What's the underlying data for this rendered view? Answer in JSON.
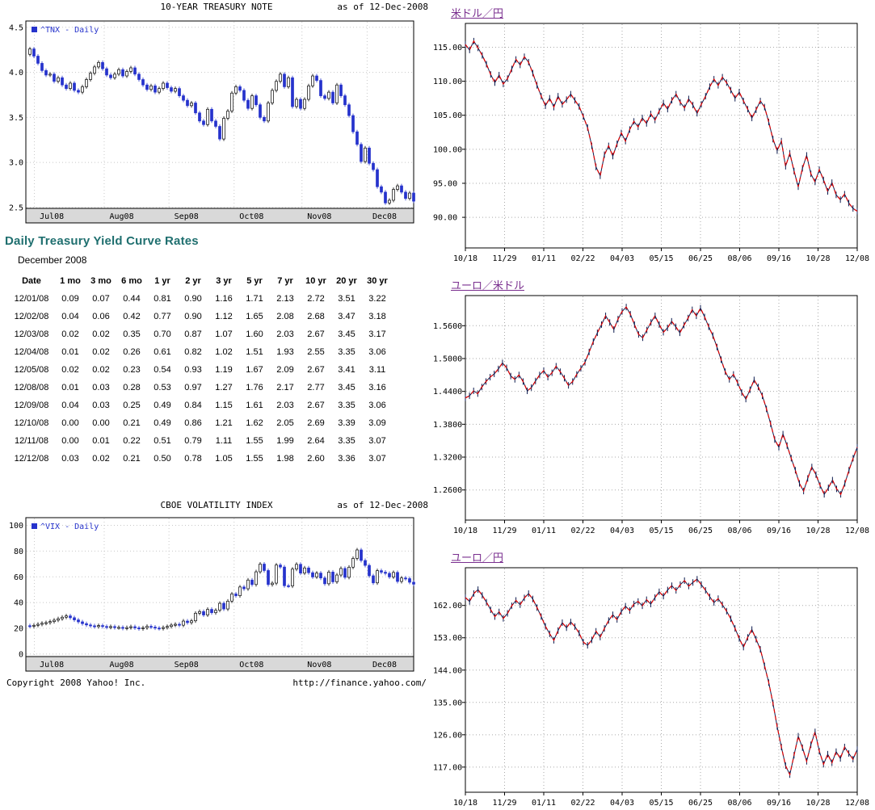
{
  "page": {
    "copyright": "Copyright 2008 Yahoo! Inc.",
    "source_url": "http://finance.yahoo.com/"
  },
  "colors": {
    "heading_teal": "#1f6f6f",
    "link_purple": "#7a2f8f",
    "candle_down_blue": "#2633cc",
    "legend_blue": "#2633cc",
    "fx_line_red": "#e00000",
    "fx_line_navy": "#0b1a4d",
    "axis_strip_gray": "#d9d9d9"
  },
  "yield_table": {
    "heading": "Daily Treasury Yield Curve Rates",
    "month_label": "December 2008",
    "columns": [
      "Date",
      "1 mo",
      "3 mo",
      "6 mo",
      "1 yr",
      "2 yr",
      "3 yr",
      "5 yr",
      "7 yr",
      "10 yr",
      "20 yr",
      "30 yr"
    ],
    "rows": [
      [
        "12/01/08",
        "0.09",
        "0.07",
        "0.44",
        "0.81",
        "0.90",
        "1.16",
        "1.71",
        "2.13",
        "2.72",
        "3.51",
        "3.22"
      ],
      [
        "12/02/08",
        "0.04",
        "0.06",
        "0.42",
        "0.77",
        "0.90",
        "1.12",
        "1.65",
        "2.08",
        "2.68",
        "3.47",
        "3.18"
      ],
      [
        "12/03/08",
        "0.02",
        "0.02",
        "0.35",
        "0.70",
        "0.87",
        "1.07",
        "1.60",
        "2.03",
        "2.67",
        "3.45",
        "3.17"
      ],
      [
        "12/04/08",
        "0.01",
        "0.02",
        "0.26",
        "0.61",
        "0.82",
        "1.02",
        "1.51",
        "1.93",
        "2.55",
        "3.35",
        "3.06"
      ],
      [
        "12/05/08",
        "0.02",
        "0.02",
        "0.23",
        "0.54",
        "0.93",
        "1.19",
        "1.67",
        "2.09",
        "2.67",
        "3.41",
        "3.11"
      ],
      [
        "12/08/08",
        "0.01",
        "0.03",
        "0.28",
        "0.53",
        "0.97",
        "1.27",
        "1.76",
        "2.17",
        "2.77",
        "3.45",
        "3.16"
      ],
      [
        "12/09/08",
        "0.04",
        "0.03",
        "0.25",
        "0.49",
        "0.84",
        "1.15",
        "1.61",
        "2.03",
        "2.67",
        "3.35",
        "3.06"
      ],
      [
        "12/10/08",
        "0.00",
        "0.00",
        "0.21",
        "0.49",
        "0.86",
        "1.21",
        "1.62",
        "2.05",
        "2.69",
        "3.39",
        "3.09"
      ],
      [
        "12/11/08",
        "0.00",
        "0.01",
        "0.22",
        "0.51",
        "0.79",
        "1.11",
        "1.55",
        "1.99",
        "2.64",
        "3.35",
        "3.07"
      ],
      [
        "12/12/08",
        "0.03",
        "0.02",
        "0.21",
        "0.50",
        "0.78",
        "1.05",
        "1.55",
        "1.98",
        "2.60",
        "3.36",
        "3.07"
      ]
    ]
  },
  "chart_data": [
    {
      "id": "tnx",
      "type": "candlestick",
      "title": "10-YEAR TREASURY NOTE",
      "as_of": "as of 12-Dec-2008",
      "legend": "^TNX - Daily",
      "ylim": [
        2.49,
        4.57
      ],
      "yticks": [
        "4.5",
        "4.0",
        "3.5",
        "3.0",
        "2.5"
      ],
      "xticks": [
        "Jul08",
        "Aug08",
        "Sep08",
        "Oct08",
        "Nov08",
        "Dec08"
      ],
      "values": [
        4.2,
        4.26,
        4.18,
        4.1,
        4.02,
        3.97,
        3.98,
        3.9,
        3.94,
        3.86,
        3.82,
        3.88,
        3.8,
        3.78,
        3.84,
        3.92,
        3.99,
        4.06,
        4.11,
        4.04,
        3.97,
        3.94,
        3.98,
        4.03,
        3.96,
        4.01,
        4.05,
        3.98,
        3.92,
        3.86,
        3.81,
        3.85,
        3.78,
        3.82,
        3.88,
        3.83,
        3.79,
        3.82,
        3.74,
        3.69,
        3.63,
        3.66,
        3.55,
        3.46,
        3.42,
        3.59,
        3.46,
        3.4,
        3.26,
        3.49,
        3.57,
        3.77,
        3.84,
        3.8,
        3.69,
        3.6,
        3.74,
        3.64,
        3.5,
        3.46,
        3.66,
        3.8,
        3.9,
        3.98,
        3.84,
        3.94,
        3.62,
        3.7,
        3.6,
        3.7,
        3.85,
        3.96,
        3.91,
        3.74,
        3.71,
        3.78,
        3.66,
        3.86,
        3.74,
        3.64,
        3.52,
        3.34,
        3.2,
        3.01,
        3.16,
        2.99,
        2.92,
        2.73,
        2.67,
        2.55,
        2.58,
        2.7,
        2.74,
        2.67,
        2.6,
        2.66,
        2.57
      ]
    },
    {
      "id": "vix",
      "type": "candlestick",
      "title": "CBOE VOLATILITY INDEX",
      "as_of": "as of 12-Dec-2008",
      "legend": "^VIX - Daily",
      "ylim": [
        -2,
        106
      ],
      "yticks": [
        "100",
        "80",
        "60",
        "40",
        "20",
        "0"
      ],
      "xticks": [
        "Jul08",
        "Aug08",
        "Sep08",
        "Oct08",
        "Nov08",
        "Dec08"
      ],
      "values": [
        22.0,
        21.6,
        22.3,
        23.1,
        23.9,
        24.4,
        25.2,
        26.3,
        27.4,
        28.6,
        29.6,
        28.2,
        26.5,
        25.0,
        23.6,
        22.6,
        21.9,
        21.3,
        22.1,
        21.4,
        20.8,
        21.3,
        20.5,
        20.7,
        20.0,
        20.5,
        21.2,
        20.3,
        19.7,
        20.4,
        21.5,
        20.9,
        20.2,
        19.8,
        20.6,
        21.4,
        22.5,
        23.1,
        22.4,
        25.6,
        24.4,
        25.8,
        31.7,
        33.0,
        30.3,
        34.7,
        32.1,
        34.0,
        39.4,
        35.0,
        41.1,
        46.7,
        45.3,
        52.1,
        50.7,
        57.5,
        54.0,
        63.9,
        69.9,
        64.9,
        54.0,
        55.1,
        69.2,
        67.6,
        53.1,
        52.9,
        66.0,
        69.7,
        62.9,
        66.9,
        63.2,
        59.9,
        62.9,
        59.1,
        54.6,
        63.7,
        56.1,
        61.4,
        66.5,
        59.6,
        67.5,
        74.3,
        80.9,
        72.7,
        68.9,
        60.8,
        55.3,
        64.8,
        63.6,
        62.7,
        59.9,
        63.4,
        56.4,
        59.1,
        58.6,
        55.8,
        54.3
      ]
    },
    {
      "id": "usdjpy",
      "type": "line",
      "title": "米ドル／円",
      "ylim": [
        85.5,
        118.5
      ],
      "yticks": [
        "115.00",
        "110.00",
        "105.00",
        "100.00",
        "95.00",
        "90.00"
      ],
      "xticks": [
        "10/18",
        "11/29",
        "01/11",
        "02/22",
        "04/03",
        "05/15",
        "06/25",
        "08/06",
        "09/16",
        "10/28",
        "12/08"
      ],
      "values": [
        115.4,
        114.6,
        115.9,
        114.9,
        113.8,
        112.5,
        111.0,
        109.8,
        110.9,
        109.6,
        110.4,
        111.8,
        113.2,
        112.4,
        113.6,
        112.8,
        111.2,
        109.4,
        107.8,
        106.4,
        107.5,
        106.2,
        107.8,
        106.6,
        107.3,
        108.1,
        107.2,
        106.3,
        104.8,
        103.2,
        100.5,
        97.4,
        96.1,
        99.2,
        100.5,
        99.0,
        100.8,
        102.4,
        101.2,
        102.9,
        104.1,
        103.3,
        104.6,
        103.8,
        105.2,
        104.3,
        105.6,
        106.8,
        105.9,
        107.2,
        108.1,
        106.9,
        106.1,
        107.4,
        106.5,
        105.3,
        106.6,
        107.8,
        109.2,
        110.3,
        109.4,
        110.6,
        109.8,
        108.7,
        107.5,
        108.4,
        107.1,
        105.9,
        104.6,
        105.8,
        107.1,
        106.2,
        104.0,
        101.5,
        99.8,
        101.2,
        97.5,
        99.4,
        96.8,
        94.5,
        97.2,
        99.1,
        96.4,
        95.2,
        97.0,
        95.5,
        93.8,
        95.1,
        93.3,
        92.6,
        93.4,
        92.1,
        91.3,
        90.9
      ]
    },
    {
      "id": "eurusd",
      "type": "line",
      "title": "ユーロ／米ドル",
      "ylim": [
        1.205,
        1.615
      ],
      "yticks": [
        "1.5600",
        "1.5000",
        "1.4400",
        "1.3800",
        "1.3200",
        "1.2600"
      ],
      "xticks": [
        "10/18",
        "11/29",
        "01/11",
        "02/22",
        "04/03",
        "05/15",
        "06/25",
        "08/06",
        "09/16",
        "10/28",
        "12/08"
      ],
      "values": [
        1.428,
        1.432,
        1.441,
        1.436,
        1.448,
        1.458,
        1.466,
        1.472,
        1.481,
        1.492,
        1.483,
        1.468,
        1.462,
        1.47,
        1.458,
        1.441,
        1.447,
        1.459,
        1.47,
        1.478,
        1.466,
        1.474,
        1.486,
        1.476,
        1.464,
        1.451,
        1.458,
        1.471,
        1.482,
        1.493,
        1.512,
        1.531,
        1.547,
        1.562,
        1.578,
        1.566,
        1.553,
        1.572,
        1.586,
        1.594,
        1.581,
        1.562,
        1.544,
        1.538,
        1.552,
        1.566,
        1.578,
        1.562,
        1.548,
        1.556,
        1.568,
        1.558,
        1.547,
        1.561,
        1.574,
        1.589,
        1.578,
        1.592,
        1.576,
        1.558,
        1.542,
        1.521,
        1.498,
        1.476,
        1.462,
        1.471,
        1.456,
        1.438,
        1.426,
        1.443,
        1.461,
        1.448,
        1.432,
        1.408,
        1.381,
        1.352,
        1.338,
        1.362,
        1.341,
        1.318,
        1.296,
        1.272,
        1.258,
        1.281,
        1.302,
        1.288,
        1.268,
        1.252,
        1.264,
        1.278,
        1.262,
        1.252,
        1.272,
        1.296,
        1.318,
        1.338
      ]
    },
    {
      "id": "eurjpy",
      "type": "line",
      "title": "ユーロ／円",
      "ylim": [
        110,
        172.5
      ],
      "yticks": [
        "162.00",
        "153.00",
        "144.00",
        "135.00",
        "126.00",
        "117.00"
      ],
      "xticks": [
        "10/18",
        "11/29",
        "01/11",
        "02/22",
        "04/03",
        "05/15",
        "06/25",
        "08/06",
        "09/16",
        "10/28",
        "12/08"
      ],
      "values": [
        164.2,
        163.1,
        165.3,
        166.4,
        164.8,
        162.9,
        160.8,
        158.9,
        160.2,
        158.4,
        159.8,
        161.9,
        163.4,
        162.2,
        164.1,
        165.3,
        163.8,
        161.4,
        158.9,
        156.2,
        154.1,
        152.3,
        155.0,
        157.2,
        155.8,
        157.4,
        156.1,
        154.3,
        151.8,
        150.9,
        152.4,
        154.8,
        153.2,
        155.6,
        157.8,
        159.4,
        158.1,
        160.3,
        161.8,
        160.6,
        162.4,
        163.1,
        161.9,
        163.6,
        162.4,
        164.2,
        165.8,
        164.6,
        166.3,
        167.5,
        166.2,
        167.8,
        168.9,
        167.4,
        168.4,
        169.3,
        167.8,
        166.2,
        164.4,
        162.8,
        163.9,
        162.2,
        160.4,
        158.3,
        155.6,
        152.8,
        150.4,
        153.1,
        155.3,
        152.6,
        149.8,
        145.2,
        140.5,
        134.8,
        128.3,
        122.6,
        117.4,
        114.9,
        120.3,
        125.6,
        122.4,
        118.6,
        123.2,
        126.8,
        121.4,
        117.8,
        120.6,
        118.2,
        121.3,
        119.4,
        122.6,
        120.8,
        119.2,
        121.9
      ]
    }
  ]
}
